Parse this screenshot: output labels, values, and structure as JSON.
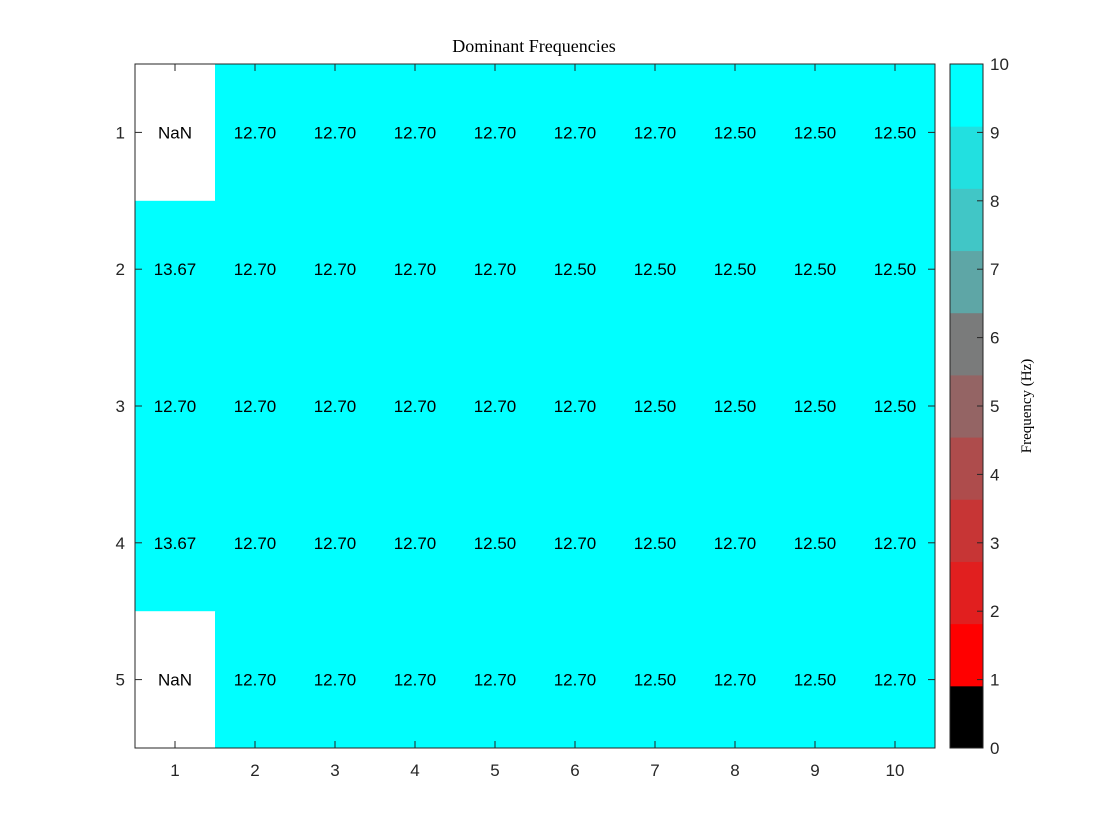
{
  "chart_data": {
    "type": "heatmap",
    "title": "Dominant Frequencies",
    "x_categories": [
      "1",
      "2",
      "3",
      "4",
      "5",
      "6",
      "7",
      "8",
      "9",
      "10"
    ],
    "y_categories": [
      "1",
      "2",
      "3",
      "4",
      "5"
    ],
    "values": [
      [
        null,
        12.7,
        12.7,
        12.7,
        12.7,
        12.7,
        12.7,
        12.5,
        12.5,
        12.5
      ],
      [
        13.67,
        12.7,
        12.7,
        12.7,
        12.7,
        12.5,
        12.5,
        12.5,
        12.5,
        12.5
      ],
      [
        12.7,
        12.7,
        12.7,
        12.7,
        12.7,
        12.7,
        12.5,
        12.5,
        12.5,
        12.5
      ],
      [
        13.67,
        12.7,
        12.7,
        12.7,
        12.5,
        12.7,
        12.5,
        12.7,
        12.5,
        12.7
      ],
      [
        null,
        12.7,
        12.7,
        12.7,
        12.7,
        12.7,
        12.5,
        12.7,
        12.5,
        12.7
      ]
    ],
    "cell_labels": [
      [
        "NaN",
        "12.70",
        "12.70",
        "12.70",
        "12.70",
        "12.70",
        "12.70",
        "12.50",
        "12.50",
        "12.50"
      ],
      [
        "13.67",
        "12.70",
        "12.70",
        "12.70",
        "12.70",
        "12.50",
        "12.50",
        "12.50",
        "12.50",
        "12.50"
      ],
      [
        "12.70",
        "12.70",
        "12.70",
        "12.70",
        "12.70",
        "12.70",
        "12.50",
        "12.50",
        "12.50",
        "12.50"
      ],
      [
        "13.67",
        "12.70",
        "12.70",
        "12.70",
        "12.50",
        "12.70",
        "12.50",
        "12.70",
        "12.50",
        "12.70"
      ],
      [
        "NaN",
        "12.70",
        "12.70",
        "12.70",
        "12.70",
        "12.70",
        "12.50",
        "12.70",
        "12.50",
        "12.70"
      ]
    ],
    "nan_color": "#ffffff",
    "colorbar": {
      "label": "Frequency (Hz)",
      "lim": [
        0,
        10
      ],
      "ticks": [
        "0",
        "1",
        "2",
        "3",
        "4",
        "5",
        "6",
        "7",
        "8",
        "9",
        "10"
      ],
      "colors": [
        "#000000",
        "#ff0000",
        "#e11f1f",
        "#c73535",
        "#ae4c4c",
        "#946464",
        "#7a7b7b",
        "#5ea6a6",
        "#41c6c6",
        "#22e0e0",
        "#00ffff"
      ]
    },
    "grid": false
  }
}
